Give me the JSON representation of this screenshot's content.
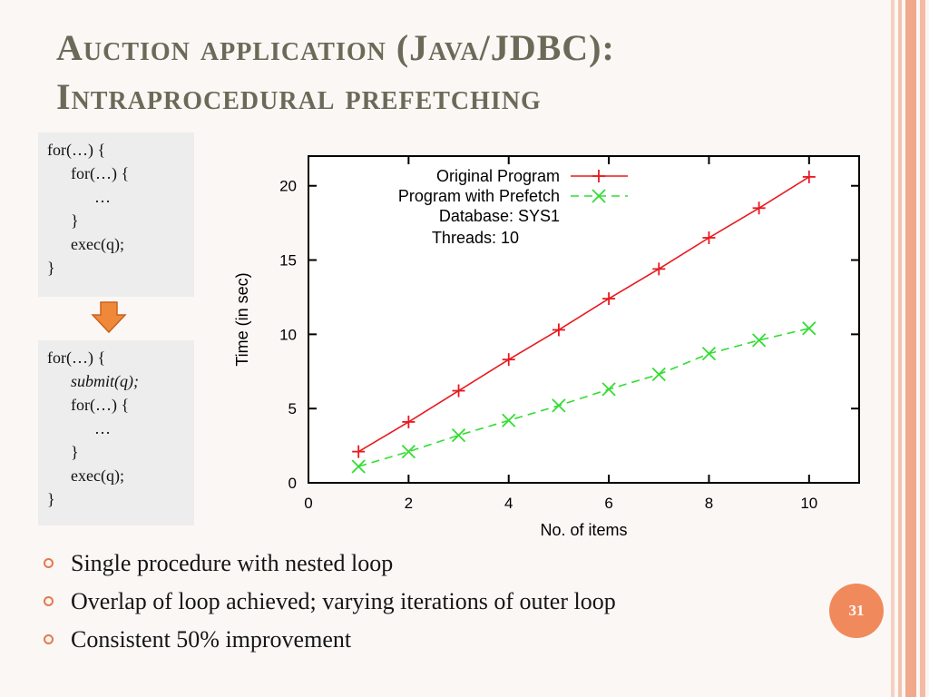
{
  "slide": {
    "title_line1": "Auction application (Java/JDBC):",
    "title_line2": "Intraprocedural prefetching",
    "page_number": "31",
    "colors": {
      "title": "#6b6a58",
      "accent": "#f08a5d",
      "bullet": "#e37a4e",
      "code_bg": "#ededed"
    }
  },
  "code_before": {
    "lines": [
      "for(…) {",
      "for(…) {",
      "…",
      "}",
      "exec(q);",
      "}"
    ]
  },
  "code_after": {
    "lines": [
      "for(…) {",
      "submit(q);",
      "for(…) {",
      "…",
      "}",
      "exec(q);",
      "}"
    ]
  },
  "bullets": [
    "Single procedure with nested loop",
    "Overlap of loop achieved; varying iterations of outer loop",
    "Consistent 50% improvement"
  ],
  "chart_data": {
    "type": "line",
    "xlabel": "No. of items",
    "ylabel": "Time (in sec)",
    "xlim": [
      0,
      11
    ],
    "ylim": [
      0,
      22
    ],
    "xticks": [
      0,
      2,
      4,
      6,
      8,
      10
    ],
    "yticks": [
      0,
      5,
      10,
      15,
      20
    ],
    "legend": {
      "placement": "top-right",
      "extra_lines": [
        "Database: SYS1",
        "Threads: 10"
      ]
    },
    "series": [
      {
        "name": "Original Program",
        "color": "#e8191f",
        "marker": "plus",
        "dash": "solid",
        "x": [
          1,
          2,
          3,
          4,
          5,
          6,
          7,
          8,
          9,
          10
        ],
        "values": [
          2.1,
          4.1,
          6.2,
          8.3,
          10.3,
          12.4,
          14.4,
          16.5,
          18.5,
          20.6
        ]
      },
      {
        "name": "Program with Prefetch",
        "color": "#33dd33",
        "marker": "cross",
        "dash": "dashed",
        "x": [
          1,
          2,
          3,
          4,
          5,
          6,
          7,
          8,
          9,
          10
        ],
        "values": [
          1.1,
          2.1,
          3.2,
          4.2,
          5.2,
          6.3,
          7.3,
          8.7,
          9.6,
          10.4
        ]
      }
    ]
  }
}
